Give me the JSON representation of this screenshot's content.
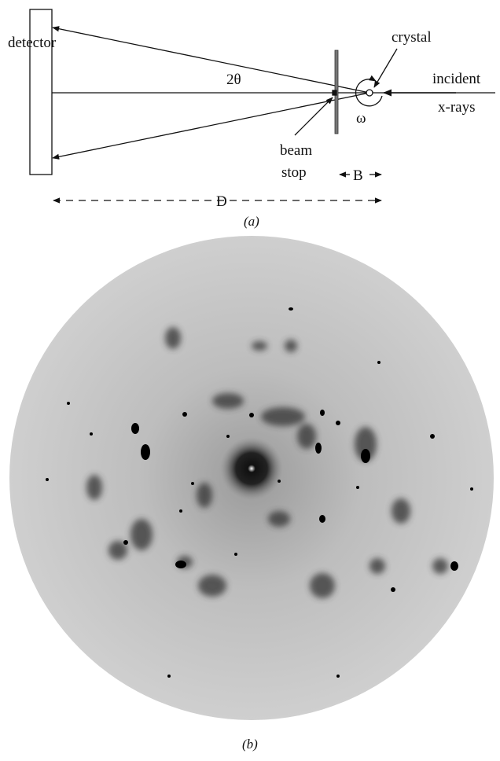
{
  "panel_a": {
    "detector": "detector",
    "two_theta": "2θ",
    "crystal": "crystal",
    "incident": "incident",
    "x_rays": "x-rays",
    "omega": "ω",
    "beam": "beam",
    "stop": "stop",
    "B": "B",
    "D": "D",
    "caption": "(a)"
  },
  "panel_b": {
    "caption": "(b)"
  }
}
